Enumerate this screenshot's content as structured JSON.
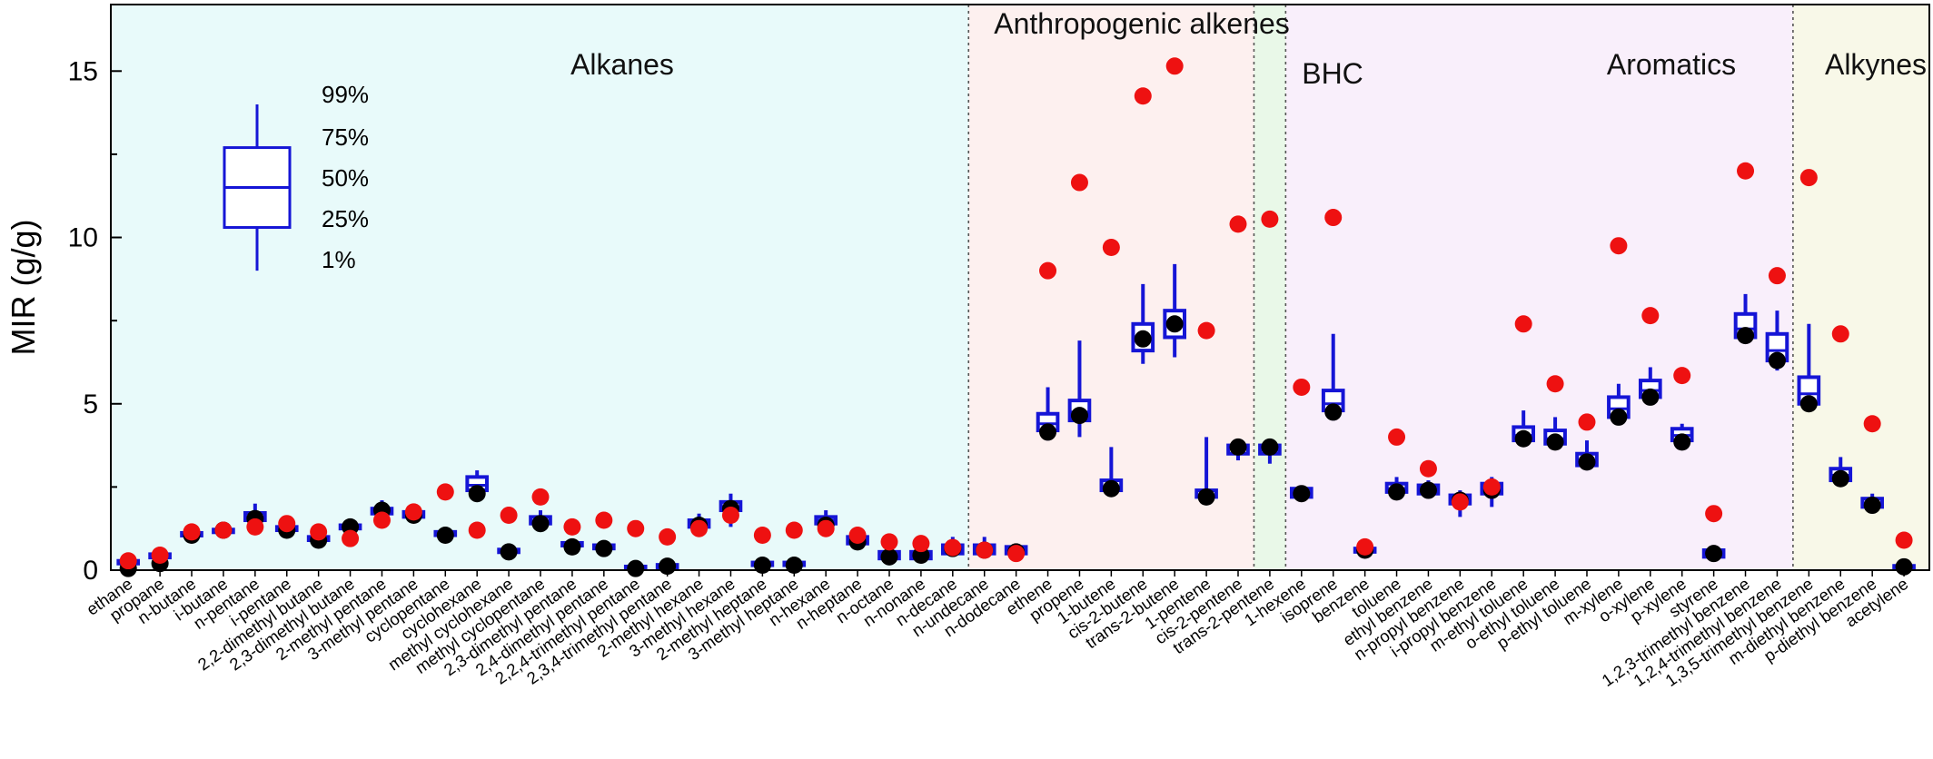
{
  "chart_data": {
    "type": "box",
    "ylabel": "MIR (g/g)",
    "xlabel": "",
    "ylim": [
      0,
      17
    ],
    "yticks": [
      0,
      5,
      10,
      15
    ],
    "colors": {
      "box": "#1515d6",
      "median_point": "#000000",
      "reference_point": "#ee1111"
    },
    "legend": {
      "position": "top-left",
      "labels": [
        "99%",
        "75%",
        "50%",
        "25%",
        "1%"
      ],
      "levels": [
        14,
        12.7,
        11.5,
        10.3,
        9
      ]
    },
    "groups": [
      {
        "name": "Alkanes",
        "start": 0,
        "end": 26,
        "color": "#e8fafa"
      },
      {
        "name": "Anthropogenic alkenes",
        "start": 27,
        "end": 35,
        "color": "#fdf0ef"
      },
      {
        "name": "BHC",
        "start": 36,
        "end": 36,
        "color": "#e9f8e8"
      },
      {
        "name": "Aromatics",
        "start": 37,
        "end": 52,
        "color": "#f9effb"
      },
      {
        "name": "Alkynes",
        "start": 53,
        "end": 53,
        "color": "#f8f8e8"
      }
    ],
    "categories": [
      "ethane",
      "propane",
      "n-butane",
      "i-butane",
      "n-pentane",
      "i-pentane",
      "2,2-dimethyl butane",
      "2,3-dimethyl butane",
      "2-methyl pentane",
      "3-methyl pentane",
      "cyclopentane",
      "cyclohexane",
      "methyl cyclohexane",
      "methyl cyclopentane",
      "2,3-dimethyl pentane",
      "2,4-dimethyl pentane",
      "2,2,4-trimethyl pentane",
      "2,3,4-trimethyl pentane",
      "2-methyl hexane",
      "3-methyl hexane",
      "2-methyl heptane",
      "3-methyl heptane",
      "n-hexane",
      "n-heptane",
      "n-octane",
      "n-nonane",
      "n-decane",
      "n-undecane",
      "n-dodecane",
      "ethene",
      "propene",
      "1-butene",
      "cis-2-butene",
      "trans-2-butene",
      "1-pentene",
      "cis-2-pentene",
      "trans-2-pentene",
      "1-hexene",
      "isoprene",
      "benzene",
      "toluene",
      "ethyl benzene",
      "n-propyl benzene",
      "i-propyl benzene",
      "m-ethyl toluene",
      "o-ethyl toluene",
      "p-ethyl toluene",
      "m-xylene",
      "o-xylene",
      "p-xylene",
      "styrene",
      "1,2,3-trimethyl benzene",
      "1,2,4-trimethyl benzene",
      "1,3,5-trimethyl benzene",
      "m-diethyl benzene",
      "p-diethyl benzene",
      "acetylene"
    ],
    "series": [
      {
        "name": "p1",
        "values": [
          0.2,
          0.35,
          1.0,
          1.1,
          1.3,
          1.1,
          0.8,
          1.2,
          1.6,
          1.5,
          1.0,
          2.2,
          0.5,
          1.3,
          0.7,
          0.6,
          0.05,
          0.1,
          1.2,
          1.3,
          0.15,
          0.15,
          1.2,
          0.6,
          0.3,
          0.3,
          0.4,
          0.4,
          0.4,
          3.9,
          4.0,
          2.3,
          6.2,
          6.4,
          2.1,
          3.3,
          3.2,
          2.2,
          4.5,
          0.5,
          2.3,
          2.2,
          1.6,
          1.9,
          3.8,
          3.7,
          3.0,
          4.4,
          5.0,
          3.7,
          0.3,
          6.8,
          6.0,
          4.8,
          2.6,
          1.8,
          0.05
        ]
      },
      {
        "name": "p25",
        "values": [
          0.22,
          0.38,
          1.05,
          1.15,
          1.5,
          1.2,
          0.9,
          1.25,
          1.7,
          1.6,
          1.05,
          2.4,
          0.55,
          1.4,
          0.75,
          0.65,
          0.07,
          0.12,
          1.3,
          1.8,
          0.18,
          0.18,
          1.4,
          0.8,
          0.35,
          0.35,
          0.5,
          0.5,
          0.5,
          4.2,
          4.5,
          2.4,
          6.6,
          7.0,
          2.2,
          3.5,
          3.5,
          2.2,
          4.8,
          0.55,
          2.35,
          2.3,
          2.0,
          2.3,
          3.9,
          3.8,
          3.15,
          4.6,
          5.2,
          3.9,
          0.4,
          7.0,
          6.3,
          5.0,
          2.7,
          1.9,
          0.08
        ]
      },
      {
        "name": "p50",
        "values": [
          0.25,
          0.42,
          1.08,
          1.18,
          1.58,
          1.25,
          0.95,
          1.3,
          1.78,
          1.68,
          1.1,
          2.55,
          0.58,
          1.48,
          0.78,
          0.7,
          0.09,
          0.14,
          1.4,
          1.9,
          0.2,
          0.2,
          1.5,
          0.9,
          0.45,
          0.45,
          0.65,
          0.65,
          0.6,
          4.4,
          4.75,
          2.5,
          6.95,
          7.4,
          2.25,
          3.65,
          3.6,
          2.3,
          5.0,
          0.6,
          2.45,
          2.4,
          2.1,
          2.45,
          4.05,
          3.95,
          3.3,
          4.85,
          5.4,
          4.05,
          0.5,
          7.25,
          6.6,
          5.3,
          2.85,
          2.0,
          0.1
        ]
      },
      {
        "name": "p75",
        "values": [
          0.28,
          0.48,
          1.12,
          1.22,
          1.72,
          1.3,
          1.0,
          1.35,
          1.85,
          1.75,
          1.15,
          2.8,
          0.62,
          1.6,
          0.82,
          0.75,
          0.11,
          0.16,
          1.5,
          2.05,
          0.23,
          0.23,
          1.6,
          1.0,
          0.55,
          0.55,
          0.75,
          0.75,
          0.7,
          4.7,
          5.1,
          2.7,
          7.4,
          7.8,
          2.4,
          3.75,
          3.75,
          2.45,
          5.4,
          0.65,
          2.6,
          2.55,
          2.25,
          2.6,
          4.3,
          4.2,
          3.5,
          5.2,
          5.7,
          4.25,
          0.6,
          7.7,
          7.1,
          5.8,
          3.05,
          2.15,
          0.13
        ]
      },
      {
        "name": "p99",
        "values": [
          0.3,
          0.5,
          1.2,
          1.3,
          2.0,
          1.4,
          1.1,
          1.4,
          2.1,
          1.9,
          1.2,
          3.0,
          0.7,
          1.8,
          0.9,
          0.8,
          0.15,
          0.2,
          1.7,
          2.3,
          0.25,
          0.25,
          1.8,
          1.2,
          0.8,
          0.8,
          1.0,
          1.0,
          0.8,
          5.5,
          6.9,
          3.7,
          8.6,
          9.2,
          4.0,
          3.9,
          3.9,
          2.5,
          7.1,
          0.7,
          2.8,
          2.7,
          2.4,
          2.8,
          4.8,
          4.6,
          3.9,
          5.6,
          6.1,
          4.4,
          0.7,
          8.3,
          7.8,
          7.4,
          3.4,
          2.3,
          0.15
        ]
      },
      {
        "name": "mean",
        "values": [
          0.05,
          0.2,
          1.05,
          1.2,
          1.55,
          1.2,
          0.9,
          1.3,
          1.8,
          1.65,
          1.05,
          2.3,
          0.55,
          1.4,
          0.7,
          0.65,
          0.05,
          0.12,
          1.35,
          1.85,
          0.15,
          0.15,
          1.35,
          0.85,
          0.4,
          0.45,
          0.65,
          0.6,
          0.55,
          4.15,
          4.65,
          2.45,
          6.95,
          7.4,
          2.2,
          3.7,
          3.7,
          2.3,
          4.75,
          0.6,
          2.35,
          2.4,
          2.1,
          2.4,
          3.95,
          3.85,
          3.25,
          4.6,
          5.2,
          3.85,
          0.5,
          7.05,
          6.3,
          5.0,
          2.75,
          1.95,
          0.1
        ]
      },
      {
        "name": "mir",
        "values": [
          0.28,
          0.45,
          1.15,
          1.2,
          1.3,
          1.4,
          1.15,
          0.95,
          1.5,
          1.75,
          2.35,
          1.2,
          1.65,
          2.2,
          1.3,
          1.5,
          1.25,
          1.0,
          1.25,
          1.65,
          1.05,
          1.2,
          1.25,
          1.05,
          0.85,
          0.8,
          0.68,
          0.6,
          0.5,
          9.0,
          11.65,
          9.7,
          14.25,
          15.15,
          7.2,
          10.4,
          10.55,
          5.5,
          10.6,
          0.7,
          4.0,
          3.05,
          2.05,
          2.5,
          7.4,
          5.6,
          4.45,
          9.75,
          7.65,
          5.85,
          1.7,
          12.0,
          8.85,
          11.8,
          7.1,
          4.4,
          0.9
        ]
      }
    ]
  }
}
